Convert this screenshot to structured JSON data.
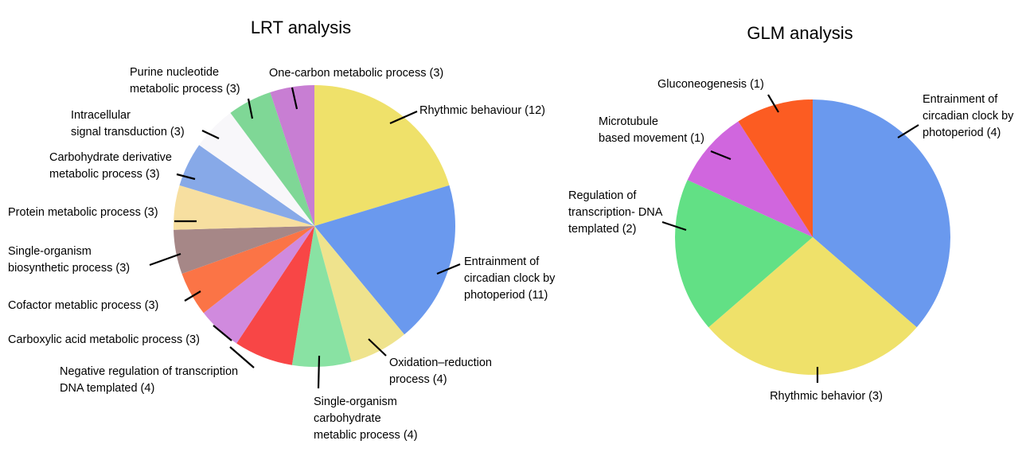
{
  "chart_data": [
    {
      "type": "pie",
      "title": "LRT analysis",
      "start": "12 o'clock",
      "direction": "clockwise",
      "slices": [
        {
          "label": [
            "Rhythmic behaviour (12)"
          ],
          "value": 12,
          "color": "#efe16a"
        },
        {
          "label": [
            "Entrainment of",
            "circadian clock by",
            "photoperiod (11)"
          ],
          "value": 11,
          "color": "#6a99ee"
        },
        {
          "label": [
            "Oxidation–reduction",
            "process (4)"
          ],
          "value": 4,
          "color": "#efe38d"
        },
        {
          "label": [
            "Single-organism",
            "carbohydrate",
            "metablic process (4)"
          ],
          "value": 4,
          "color": "#89e2a3"
        },
        {
          "label": [
            "Negative regulation of transcription",
            "DNA templated (4)"
          ],
          "value": 4,
          "color": "#f84646"
        },
        {
          "label": [
            "Carboxylic acid metabolic process (3)"
          ],
          "value": 3,
          "color": "#d08ade"
        },
        {
          "label": [
            "Cofactor metablic process (3)"
          ],
          "value": 3,
          "color": "#fb7446"
        },
        {
          "label": [
            "Single-organism",
            "biosynthetic process (3)"
          ],
          "value": 3,
          "color": "#a68787"
        },
        {
          "label": [
            "Protein metabolic process (3)"
          ],
          "value": 3,
          "color": "#f7dfa0"
        },
        {
          "label": [
            "Carbohydrate derivative",
            "metabolic process (3)"
          ],
          "value": 3,
          "color": "#87a9e8"
        },
        {
          "label": [
            "Intracellular",
            "signal transduction (3)"
          ],
          "value": 3,
          "color": "#f8f7fa"
        },
        {
          "label": [
            "Purine nucleotide",
            "metabolic process (3)"
          ],
          "value": 3,
          "color": "#7fd796"
        },
        {
          "label": [
            "One-carbon metabolic process (3)"
          ],
          "value": 3,
          "color": "#c87ed3"
        }
      ]
    },
    {
      "type": "pie",
      "title": "GLM analysis",
      "start": "12 o'clock",
      "direction": "clockwise",
      "slices": [
        {
          "label": [
            "Entrainment of",
            "circadian clock by",
            "photoperiod (4)"
          ],
          "value": 4,
          "color": "#6a99ee"
        },
        {
          "label": [
            "Rhythmic behavior (3)"
          ],
          "value": 3,
          "color": "#efe16a"
        },
        {
          "label": [
            "Regulation of",
            "transcription- DNA",
            "templated (2)"
          ],
          "value": 2,
          "color": "#62e085"
        },
        {
          "label": [
            "Microtubule",
            "based movement (1)"
          ],
          "value": 1,
          "color": "#d066de"
        },
        {
          "label": [
            "Gluconeogenesis (1)"
          ],
          "value": 1,
          "color": "#fc5c22"
        }
      ]
    }
  ]
}
